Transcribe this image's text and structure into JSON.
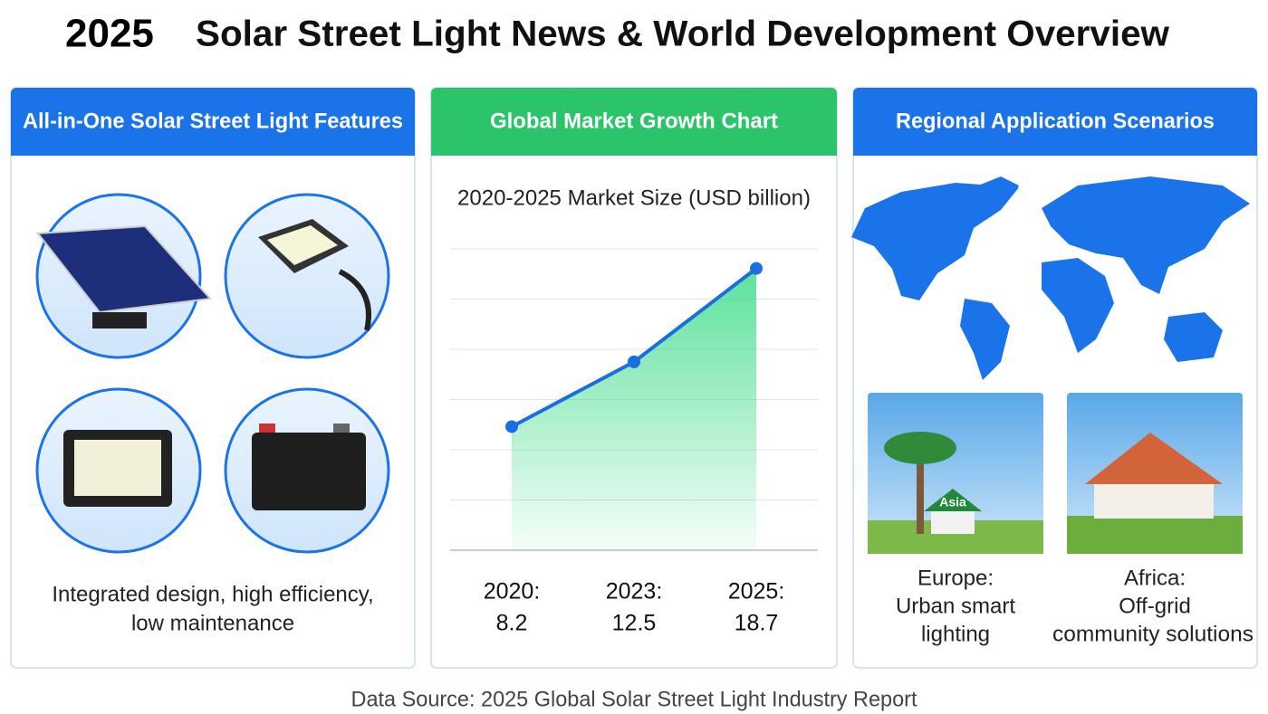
{
  "title_year": "2025",
  "title": "Solar Street Light News & World Development Overview",
  "panels": {
    "features": {
      "header": "All-in-One Solar Street Light Features",
      "caption_lines": [
        "Integrated design, high efficiency,",
        "low maintenance"
      ]
    },
    "market": {
      "header": "Global Market Growth Chart"
    },
    "regional": {
      "header": "Regional Application Scenarios",
      "scenarios": [
        {
          "sign_text": "Asia",
          "label_lines": [
            "Europe:",
            "Urban smart",
            "lighting"
          ]
        },
        {
          "label_lines": [
            "Africa:",
            "Off-grid",
            "community solutions"
          ]
        }
      ]
    }
  },
  "chart_data": {
    "type": "line",
    "title": "2020-2025 Market Size (USD billion)",
    "categories": [
      "2020:",
      "2023:",
      "2025:"
    ],
    "values": [
      8.2,
      12.5,
      18.7
    ],
    "color": "#1a6fe0",
    "area_color": "#3fdc8a",
    "ylim": [
      0,
      20
    ],
    "grid": true
  },
  "footer": "Data Source: 2025 Global Solar Street Light Industry Report"
}
